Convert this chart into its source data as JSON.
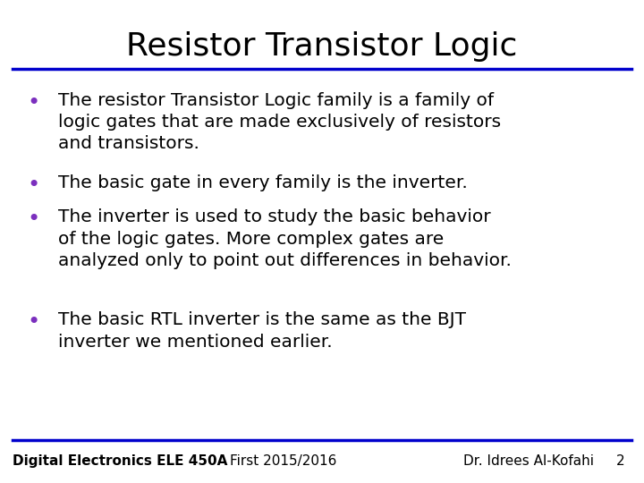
{
  "title": "Resistor Transistor Logic",
  "title_fontsize": 26,
  "title_font": "DejaVu Sans",
  "bg_color": "#ffffff",
  "title_color": "#000000",
  "line_color": "#0000cc",
  "bullet_color": "#7B2FBE",
  "text_color": "#000000",
  "footer_left": "Digital Electronics ELE 450A",
  "footer_mid": "First 2015/2016",
  "footer_right": "Dr. Idrees Al-Kofahi",
  "footer_page": "2",
  "bullets_group1": [
    "The resistor Transistor Logic family is a family of\nlogic gates that are made exclusively of resistors\nand transistors.",
    "The basic gate in every family is the inverter.",
    "The inverter is used to study the basic behavior\nof the logic gates. More complex gates are\nanalyzed only to point out differences in behavior."
  ],
  "bullets_group2": [
    "The basic RTL inverter is the same as the BJT\ninverter we mentioned earlier."
  ],
  "body_fontsize": 14.5,
  "footer_fontsize": 11
}
